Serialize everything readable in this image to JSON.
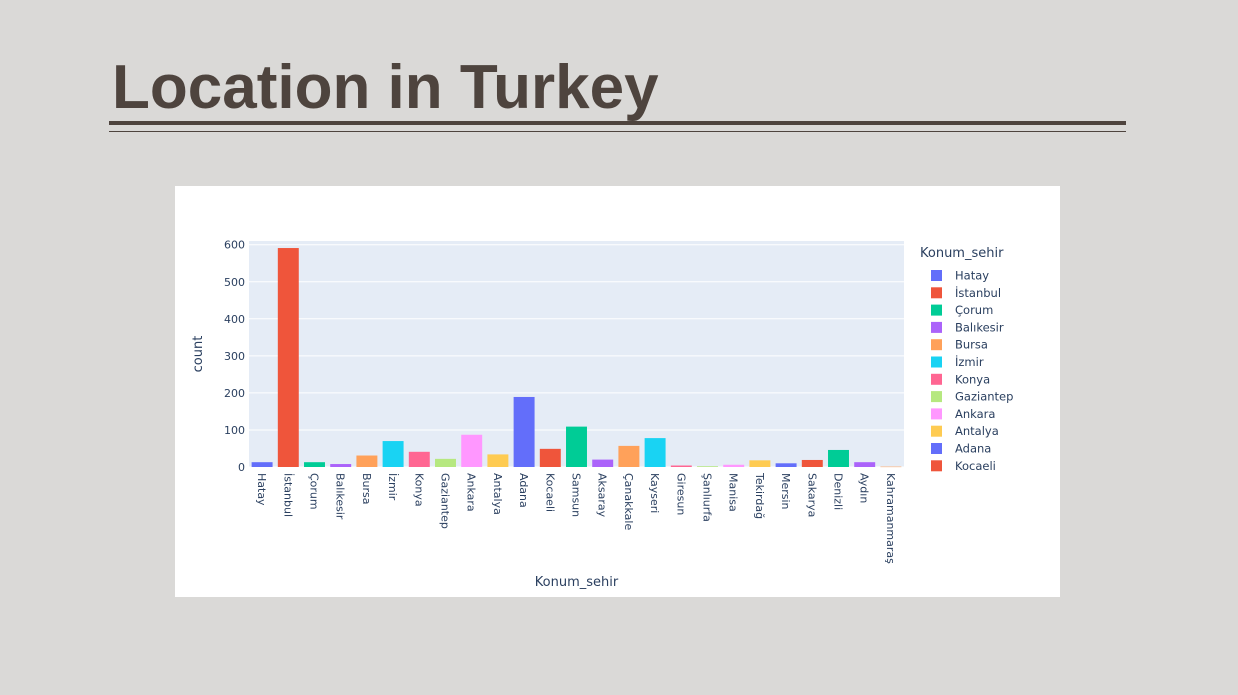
{
  "slide": {
    "title": "Location in Turkey"
  },
  "chart_data": {
    "type": "bar",
    "xlabel": "Konum_sehir",
    "ylabel": "count",
    "ylim": [
      0,
      610
    ],
    "yticks": [
      0,
      100,
      200,
      300,
      400,
      500,
      600
    ],
    "grid": true,
    "legend_title": "Konum_sehir",
    "legend_position": "right",
    "plot_background": "#e5ecf6",
    "palette": [
      "#636efa",
      "#ef553b",
      "#00cc96",
      "#ab63fa",
      "#ffa15a",
      "#19d3f3",
      "#ff6692",
      "#b6e880",
      "#ff97ff",
      "#fecb52"
    ],
    "categories": [
      "Hatay",
      "İstanbul",
      "Çorum",
      "Balıkesir",
      "Bursa",
      "İzmir",
      "Konya",
      "Gaziantep",
      "Ankara",
      "Antalya",
      "Adana",
      "Kocaeli",
      "Samsun",
      "Aksaray",
      "Çanakkale",
      "Kayseri",
      "Giresun",
      "Şanlıurfa",
      "Manisa",
      "Tekirdağ",
      "Mersin",
      "Sakarya",
      "Denizli",
      "Aydın",
      "Kahramanmaraş"
    ],
    "values": [
      13,
      591,
      13,
      8,
      31,
      70,
      41,
      22,
      87,
      34,
      189,
      49,
      109,
      20,
      57,
      78,
      4,
      2,
      6,
      18,
      10,
      19,
      46,
      13,
      1
    ],
    "legend_entries": [
      "Hatay",
      "İstanbul",
      "Çorum",
      "Balıkesir",
      "Bursa",
      "İzmir",
      "Konya",
      "Gaziantep",
      "Ankara",
      "Antalya",
      "Adana",
      "Kocaeli"
    ]
  }
}
